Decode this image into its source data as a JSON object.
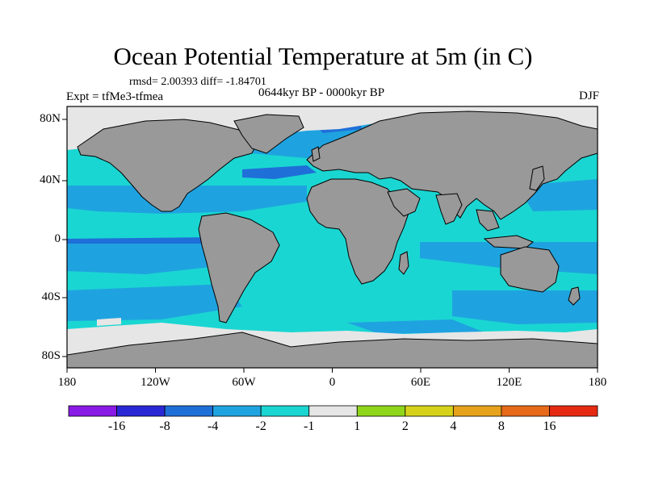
{
  "title": "Ocean Potential Temperature at 5m (in C)",
  "stats": "rmsd= 2.00393 diff= -1.84701",
  "experiment": "Expt = tfMe3-tfmea",
  "period": "0644kyr BP - 0000kyr BP",
  "season": "DJF",
  "y_axis_labels": [
    "80N",
    "40N",
    "0",
    "40S",
    "80S"
  ],
  "x_axis_labels": [
    "180",
    "120W",
    "60W",
    "0",
    "60E",
    "120E",
    "180"
  ],
  "colorbar": {
    "labels": [
      "-16",
      "-8",
      "-4",
      "-2",
      "-1",
      "1",
      "2",
      "4",
      "8",
      "16"
    ],
    "colors": [
      "#8a1ae6",
      "#2a28d6",
      "#1f6fd8",
      "#1fa3e0",
      "#1ad6d2",
      "#e6e6e6",
      "#8fd61a",
      "#d6d21a",
      "#e6a21a",
      "#e66a1a",
      "#e62a12"
    ]
  },
  "map_colors": {
    "land": "#999999",
    "ocean_light": "#1ad6d2",
    "ocean_mid": "#1fa3e0",
    "ocean_dark": "#1f6fd8",
    "ice": "#e6e6e6"
  }
}
